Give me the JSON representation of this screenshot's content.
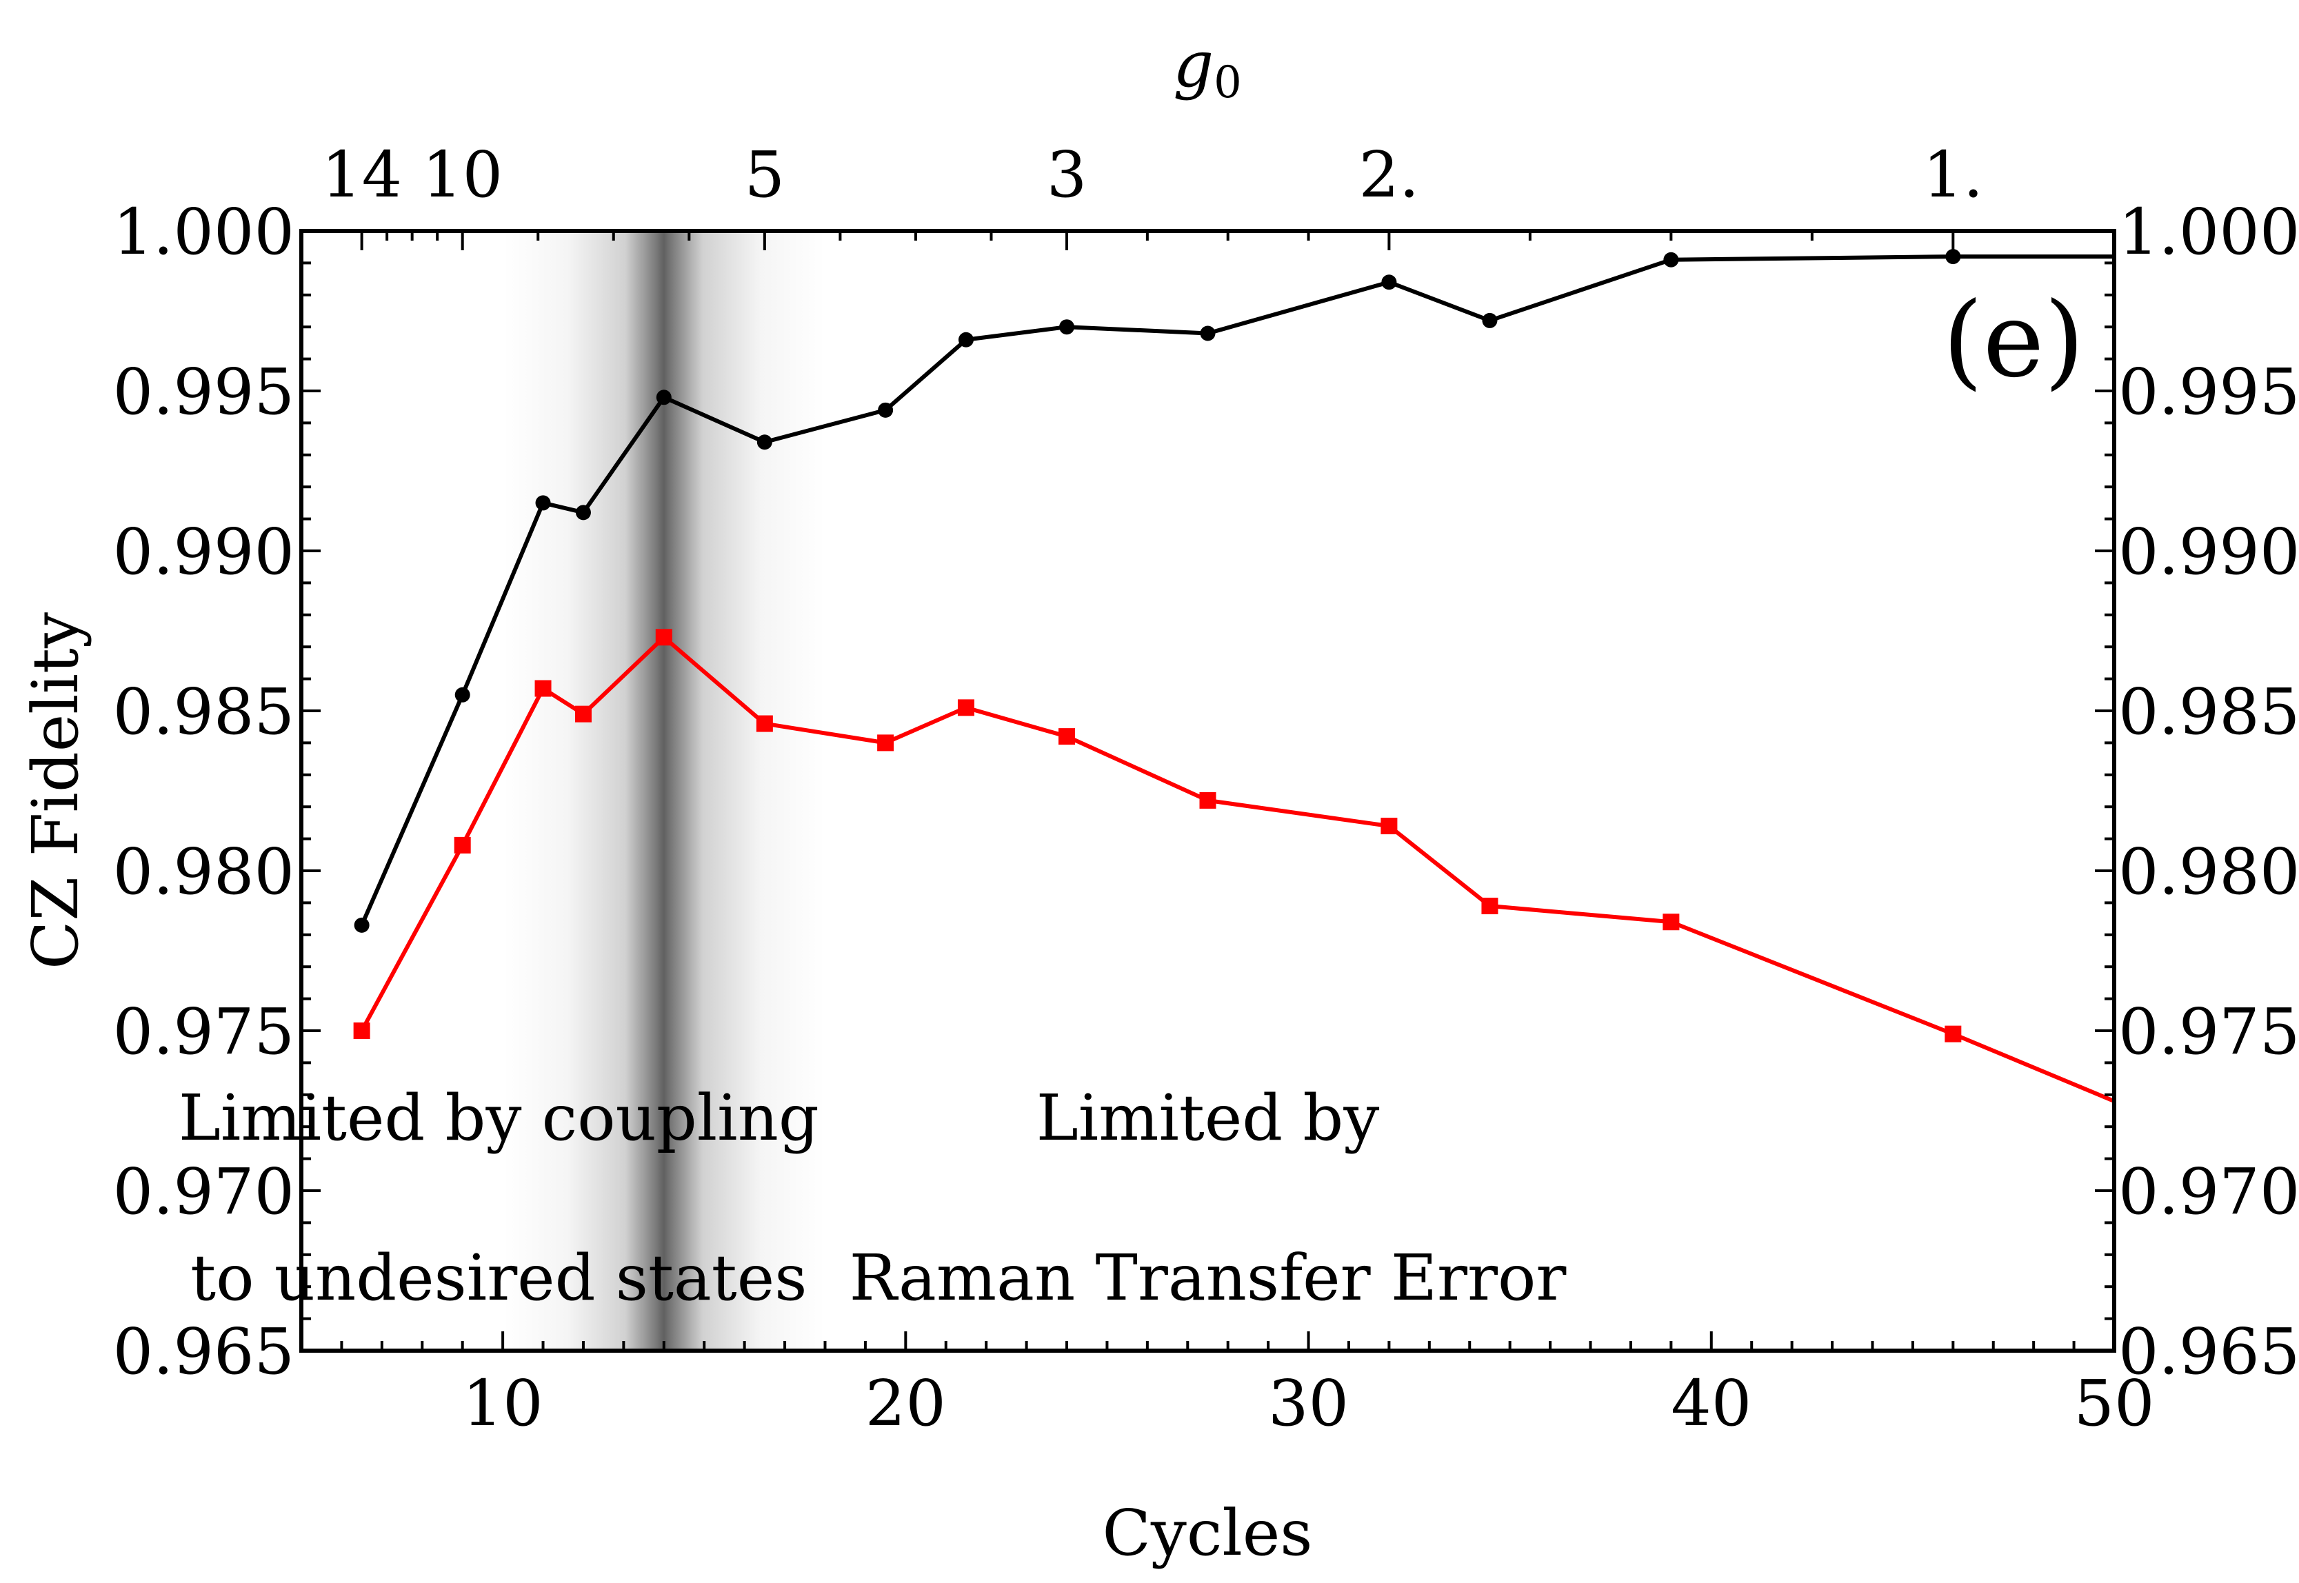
{
  "chart_data": {
    "type": "line",
    "panel_label": "(e)",
    "xlabel": "Cycles",
    "ylabel": "CZ Fidelity",
    "top_axis_label": "g",
    "top_axis_label_subscript": "0",
    "xlim": [
      5,
      50
    ],
    "ylim": [
      0.965,
      1.0
    ],
    "x_ticks": [
      10,
      20,
      30,
      40,
      50
    ],
    "x_tick_labels": [
      "10",
      "20",
      "30",
      "40",
      "50"
    ],
    "y_ticks": [
      0.965,
      0.97,
      0.975,
      0.98,
      0.985,
      0.99,
      0.995,
      1.0
    ],
    "y_tick_labels": [
      "0.965",
      "0.970",
      "0.975",
      "0.980",
      "0.985",
      "0.990",
      "0.995",
      "1.000"
    ],
    "top_ticks": [
      {
        "x": 6.5,
        "label": "14"
      },
      {
        "x": 9,
        "label": "10"
      },
      {
        "x": 16.5,
        "label": "5"
      },
      {
        "x": 24,
        "label": "3"
      },
      {
        "x": 32,
        "label": "2."
      },
      {
        "x": 46,
        "label": "1."
      }
    ],
    "shaded_band": {
      "center": 14,
      "half_width": 4
    },
    "series": [
      {
        "name": "black",
        "color": "#000000",
        "marker": "circle",
        "x": [
          6.5,
          9,
          11,
          12,
          14,
          16.5,
          19.5,
          21.5,
          24,
          27.5,
          32,
          34.5,
          39,
          46,
          50
        ],
        "y": [
          0.9783,
          0.9855,
          0.9915,
          0.9912,
          0.9948,
          0.9934,
          0.9944,
          0.9966,
          0.997,
          0.9968,
          0.9984,
          0.9972,
          0.9991,
          0.9992,
          0.9992
        ],
        "marker_mask": [
          1,
          1,
          1,
          1,
          1,
          1,
          1,
          1,
          1,
          1,
          1,
          1,
          1,
          1,
          0
        ]
      },
      {
        "name": "red",
        "color": "#ff0000",
        "marker": "square",
        "x": [
          6.5,
          9,
          11,
          12,
          14,
          16.5,
          19.5,
          21.5,
          24,
          27.5,
          32,
          34.5,
          39,
          46,
          50
        ],
        "y": [
          0.975,
          0.9808,
          0.9857,
          0.9849,
          0.9873,
          0.9846,
          0.984,
          0.9851,
          0.9842,
          0.9822,
          0.9814,
          0.9789,
          0.9784,
          0.9749,
          0.9728
        ],
        "marker_mask": [
          1,
          1,
          1,
          1,
          1,
          1,
          1,
          1,
          1,
          1,
          1,
          1,
          1,
          1,
          0
        ]
      }
    ],
    "annotations": [
      {
        "text": "Limited by coupling",
        "x": 9.9,
        "y": 0.9716
      },
      {
        "text": "to undesired states",
        "x": 9.9,
        "y": 0.9666
      },
      {
        "text": "Limited by",
        "x": 27.5,
        "y": 0.9716
      },
      {
        "text": "Raman Transfer Error",
        "x": 27.5,
        "y": 0.9666
      }
    ]
  }
}
